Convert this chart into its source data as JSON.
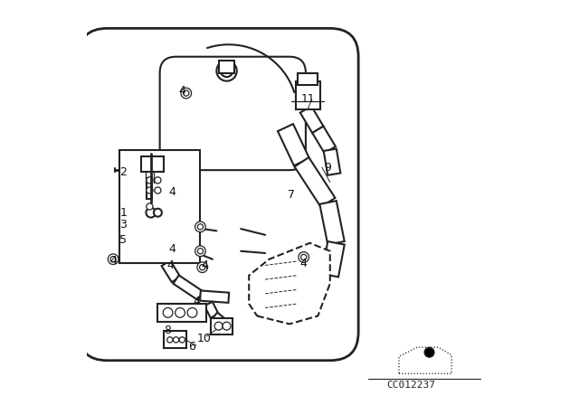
{
  "bg_color": "#ffffff",
  "fig_width": 6.4,
  "fig_height": 4.48,
  "dpi": 100,
  "diagram_code": "CC012237",
  "line_color": "#222222",
  "label_color": "#111111",
  "label_fontsize": 9
}
